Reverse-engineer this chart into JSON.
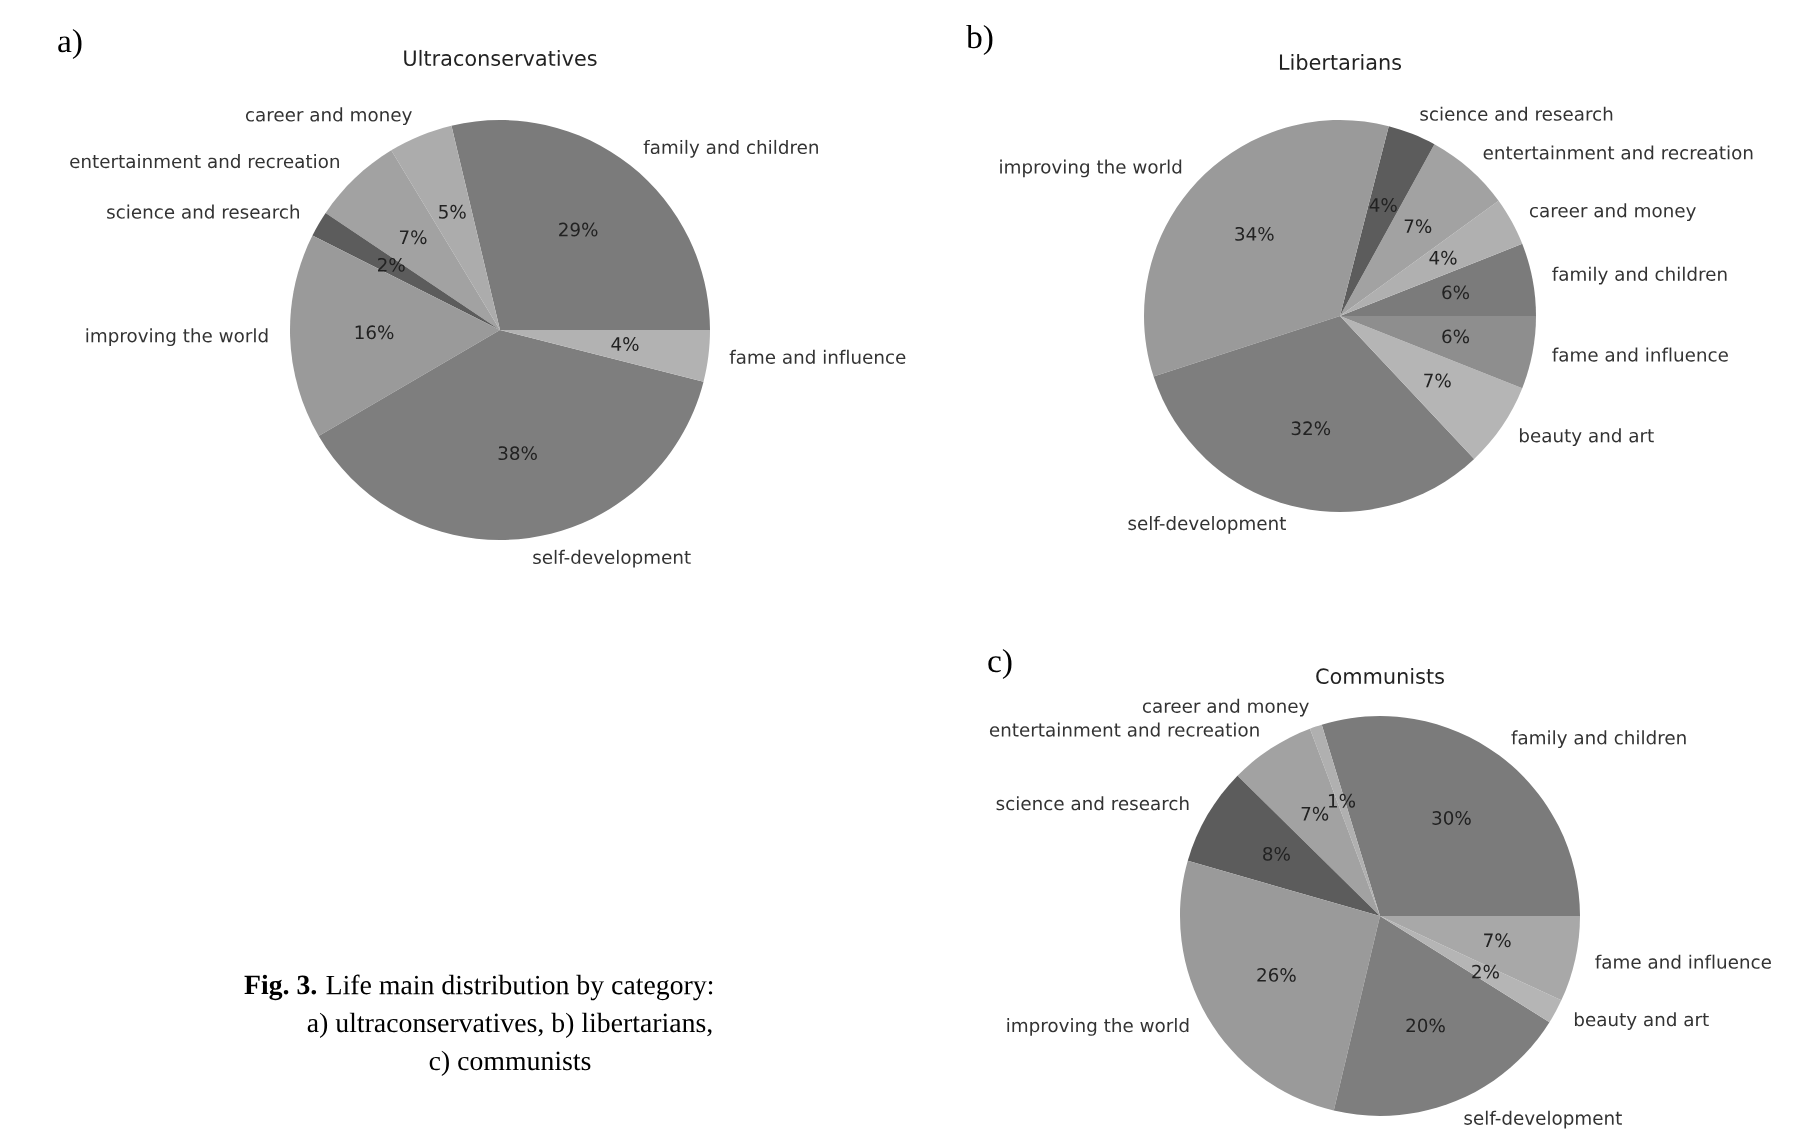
{
  "chart_data": [
    {
      "type": "pie",
      "title": "Ultraconservatives",
      "categories": [
        "family and children",
        "career and money",
        "entertainment and recreation",
        "science and research",
        "improving the world",
        "self-development",
        "fame and influence"
      ],
      "values": [
        29,
        5,
        7,
        2,
        16,
        38,
        4
      ],
      "value_labels": [
        "29%",
        "5%",
        "7%",
        "2%",
        "16%",
        "38%",
        "4%"
      ],
      "colors": [
        "#7b7b7b",
        "#acacac",
        "#a2a2a2",
        "#5c5c5c",
        "#9a9a9a",
        "#7e7e7e",
        "#b2b2b2"
      ],
      "annotations": [
        "a)",
        "Fig. 3.",
        "Life main distribution by category:",
        "a) ultraconservatives, b) libertarians,",
        "c) communists"
      ]
    },
    {
      "type": "pie",
      "title": "Libertarians",
      "categories": [
        "family and children",
        "career and money",
        "entertainment and recreation",
        "science and research",
        "improving the world",
        "self-development",
        "beauty and art",
        "fame and influence"
      ],
      "values": [
        6,
        4,
        7,
        4,
        34,
        32,
        7,
        6
      ],
      "value_labels": [
        "6%",
        "4%",
        "7%",
        "4%",
        "34%",
        "32%",
        "7%",
        "6%"
      ],
      "colors": [
        "#7b7b7b",
        "#b0b0b0",
        "#a2a2a2",
        "#5c5c5c",
        "#9a9a9a",
        "#7e7e7e",
        "#b5b5b5",
        "#8e8e8e"
      ],
      "annotations": [
        "b)"
      ]
    },
    {
      "type": "pie",
      "title": "Communists",
      "categories": [
        "family and children",
        "career and money",
        "entertainment and recreation",
        "science and research",
        "improving the world",
        "self-development",
        "beauty and art",
        "fame and influence"
      ],
      "values": [
        30,
        1,
        7,
        8,
        26,
        20,
        2,
        7
      ],
      "value_labels": [
        "30%",
        "1%",
        "7%",
        "8%",
        "26%",
        "20%",
        "2%",
        "7%"
      ],
      "colors": [
        "#7b7b7b",
        "#b0b0b0",
        "#a2a2a2",
        "#5c5c5c",
        "#9a9a9a",
        "#7e7e7e",
        "#b5b5b5",
        "#a8a8a8"
      ],
      "annotations": [
        "c)"
      ]
    }
  ]
}
